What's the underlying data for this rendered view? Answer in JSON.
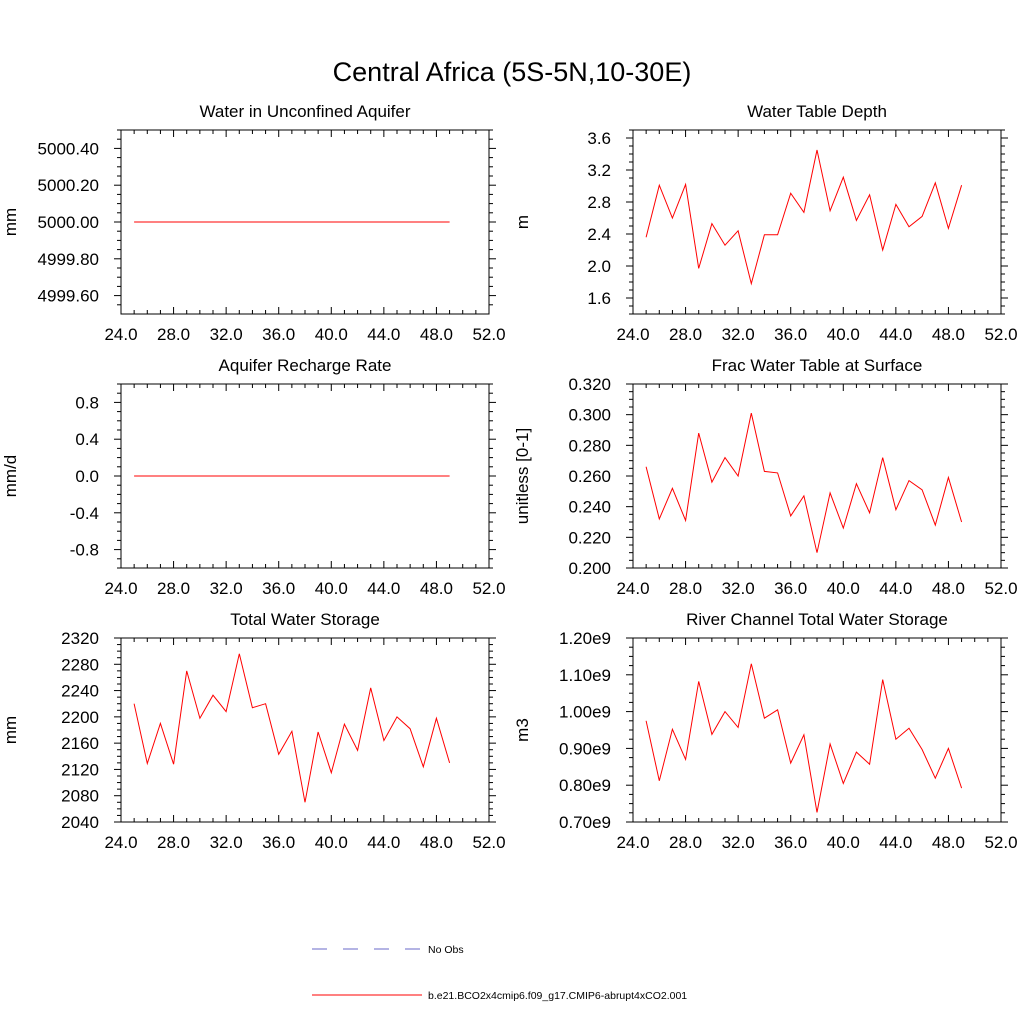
{
  "figure": {
    "title": "Central Africa (5S-5N,10-30E)"
  },
  "legend": {
    "entries": [
      {
        "label": "No Obs",
        "color": "#6a6ac8",
        "style": "dashed"
      },
      {
        "label": "b.e21.BCO2x4cmip6.f09_g17.CMIP6-abrupt4xCO2.001",
        "color": "#ff0000",
        "style": "solid"
      }
    ]
  },
  "chart_data": [
    {
      "type": "line",
      "title": "Water in Unconfined Aquifer",
      "ylabel": "mm",
      "xlim": [
        24,
        52
      ],
      "ylim": [
        4999.5,
        5000.5
      ],
      "xticks": [
        24,
        28,
        32,
        36,
        40,
        44,
        48,
        52
      ],
      "xtick_labels": [
        "24.0",
        "28.0",
        "32.0",
        "36.0",
        "40.0",
        "44.0",
        "48.0",
        "52.0"
      ],
      "yticks": [
        4999.6,
        4999.8,
        5000.0,
        5000.2,
        5000.4
      ],
      "ytick_labels": [
        "4999.60",
        "4999.80",
        "5000.00",
        "5000.20",
        "5000.40"
      ],
      "series": [
        {
          "color": "#ff0000",
          "x": [
            25,
            26,
            27,
            28,
            29,
            30,
            31,
            32,
            33,
            34,
            35,
            36,
            37,
            38,
            39,
            40,
            41,
            42,
            43,
            44,
            45,
            46,
            47,
            48,
            49
          ],
          "y": [
            5000.0,
            5000.0,
            5000.0,
            5000.0,
            5000.0,
            5000.0,
            5000.0,
            5000.0,
            5000.0,
            5000.0,
            5000.0,
            5000.0,
            5000.0,
            5000.0,
            5000.0,
            5000.0,
            5000.0,
            5000.0,
            5000.0,
            5000.0,
            5000.0,
            5000.0,
            5000.0,
            5000.0,
            5000.0
          ]
        }
      ]
    },
    {
      "type": "line",
      "title": "Water Table Depth",
      "ylabel": "m",
      "xlim": [
        24,
        52
      ],
      "ylim": [
        1.4,
        3.7
      ],
      "xticks": [
        24,
        28,
        32,
        36,
        40,
        44,
        48,
        52
      ],
      "xtick_labels": [
        "24.0",
        "28.0",
        "32.0",
        "36.0",
        "40.0",
        "44.0",
        "48.0",
        "52.0"
      ],
      "yticks": [
        1.6,
        2.0,
        2.4,
        2.8,
        3.2,
        3.6
      ],
      "ytick_labels": [
        "1.6",
        "2.0",
        "2.4",
        "2.8",
        "3.2",
        "3.6"
      ],
      "series": [
        {
          "color": "#ff0000",
          "x": [
            25,
            26,
            27,
            28,
            29,
            30,
            31,
            32,
            33,
            34,
            35,
            36,
            37,
            38,
            39,
            40,
            41,
            42,
            43,
            44,
            45,
            46,
            47,
            48,
            49
          ],
          "y": [
            2.36,
            3.01,
            2.6,
            3.02,
            1.97,
            2.53,
            2.26,
            2.44,
            1.78,
            2.39,
            2.39,
            2.91,
            2.67,
            3.45,
            2.69,
            3.11,
            2.57,
            2.89,
            2.2,
            2.77,
            2.49,
            2.62,
            3.04,
            2.47,
            3.01
          ]
        }
      ]
    },
    {
      "type": "line",
      "title": "Aquifer Recharge Rate",
      "ylabel": "mm/d",
      "xlim": [
        24,
        52
      ],
      "ylim": [
        -1.0,
        1.0
      ],
      "xticks": [
        24,
        28,
        32,
        36,
        40,
        44,
        48,
        52
      ],
      "xtick_labels": [
        "24.0",
        "28.0",
        "32.0",
        "36.0",
        "40.0",
        "44.0",
        "48.0",
        "52.0"
      ],
      "yticks": [
        -0.8,
        -0.4,
        0.0,
        0.4,
        0.8
      ],
      "ytick_labels": [
        "-0.8",
        "-0.4",
        "0.0",
        "0.4",
        "0.8"
      ],
      "series": [
        {
          "color": "#ff0000",
          "x": [
            25,
            26,
            27,
            28,
            29,
            30,
            31,
            32,
            33,
            34,
            35,
            36,
            37,
            38,
            39,
            40,
            41,
            42,
            43,
            44,
            45,
            46,
            47,
            48,
            49
          ],
          "y": [
            0,
            0,
            0,
            0,
            0,
            0,
            0,
            0,
            0,
            0,
            0,
            0,
            0,
            0,
            0,
            0,
            0,
            0,
            0,
            0,
            0,
            0,
            0,
            0,
            0
          ]
        }
      ]
    },
    {
      "type": "line",
      "title": "Frac Water Table at Surface",
      "ylabel": "unitless [0-1]",
      "xlim": [
        24,
        52
      ],
      "ylim": [
        0.2,
        0.32
      ],
      "xticks": [
        24,
        28,
        32,
        36,
        40,
        44,
        48,
        52
      ],
      "xtick_labels": [
        "24.0",
        "28.0",
        "32.0",
        "36.0",
        "40.0",
        "44.0",
        "48.0",
        "52.0"
      ],
      "yticks": [
        0.2,
        0.22,
        0.24,
        0.26,
        0.28,
        0.3,
        0.32
      ],
      "ytick_labels": [
        "0.200",
        "0.220",
        "0.240",
        "0.260",
        "0.280",
        "0.300",
        "0.320"
      ],
      "series": [
        {
          "color": "#ff0000",
          "x": [
            25,
            26,
            27,
            28,
            29,
            30,
            31,
            32,
            33,
            34,
            35,
            36,
            37,
            38,
            39,
            40,
            41,
            42,
            43,
            44,
            45,
            46,
            47,
            48,
            49
          ],
          "y": [
            0.266,
            0.232,
            0.252,
            0.231,
            0.288,
            0.256,
            0.272,
            0.26,
            0.301,
            0.263,
            0.262,
            0.234,
            0.247,
            0.21,
            0.249,
            0.226,
            0.255,
            0.236,
            0.272,
            0.238,
            0.257,
            0.251,
            0.228,
            0.259,
            0.23
          ]
        }
      ]
    },
    {
      "type": "line",
      "title": "Total Water Storage",
      "ylabel": "mm",
      "xlim": [
        24,
        52
      ],
      "ylim": [
        2040,
        2320
      ],
      "xticks": [
        24,
        28,
        32,
        36,
        40,
        44,
        48,
        52
      ],
      "xtick_labels": [
        "24.0",
        "28.0",
        "32.0",
        "36.0",
        "40.0",
        "44.0",
        "48.0",
        "52.0"
      ],
      "yticks": [
        2040,
        2080,
        2120,
        2160,
        2200,
        2240,
        2280,
        2320
      ],
      "ytick_labels": [
        "2040",
        "2080",
        "2120",
        "2160",
        "2200",
        "2240",
        "2280",
        "2320"
      ],
      "series": [
        {
          "color": "#ff0000",
          "x": [
            25,
            26,
            27,
            28,
            29,
            30,
            31,
            32,
            33,
            34,
            35,
            36,
            37,
            38,
            39,
            40,
            41,
            42,
            43,
            44,
            45,
            46,
            47,
            48,
            49
          ],
          "y": [
            2220,
            2129,
            2190,
            2128,
            2270,
            2198,
            2233,
            2208,
            2296,
            2214,
            2220,
            2143,
            2178,
            2070,
            2177,
            2115,
            2189,
            2149,
            2244,
            2164,
            2200,
            2182,
            2124,
            2198,
            2130
          ]
        }
      ]
    },
    {
      "type": "line",
      "title": "River Channel Total Water Storage",
      "ylabel": "m3",
      "xlim": [
        24,
        52
      ],
      "ylim": [
        0.7,
        1.2
      ],
      "xticks": [
        24,
        28,
        32,
        36,
        40,
        44,
        48,
        52
      ],
      "xtick_labels": [
        "24.0",
        "28.0",
        "32.0",
        "36.0",
        "40.0",
        "44.0",
        "48.0",
        "52.0"
      ],
      "yticks": [
        0.7,
        0.8,
        0.9,
        1.0,
        1.1,
        1.2
      ],
      "ytick_labels": [
        "0.70e9",
        "0.80e9",
        "0.90e9",
        "1.00e9",
        "1.10e9",
        "1.20e9"
      ],
      "series": [
        {
          "color": "#ff0000",
          "x": [
            25,
            26,
            27,
            28,
            29,
            30,
            31,
            32,
            33,
            34,
            35,
            36,
            37,
            38,
            39,
            40,
            41,
            42,
            43,
            44,
            45,
            46,
            47,
            48,
            49
          ],
          "y": [
            0.975,
            0.812,
            0.952,
            0.87,
            1.082,
            0.938,
            1.0,
            0.957,
            1.13,
            0.982,
            1.005,
            0.86,
            0.937,
            0.726,
            0.912,
            0.805,
            0.89,
            0.857,
            1.087,
            0.925,
            0.955,
            0.897,
            0.819,
            0.9,
            0.792
          ]
        }
      ]
    }
  ]
}
